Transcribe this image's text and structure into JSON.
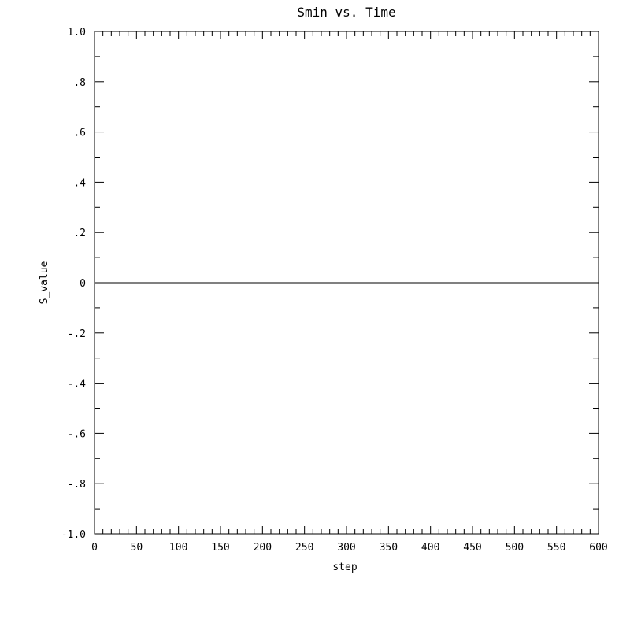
{
  "chart_data": {
    "type": "line",
    "title": "Smin vs. Time",
    "xlabel": "step",
    "ylabel": "S_value",
    "xlim": [
      0,
      600
    ],
    "ylim": [
      -1.0,
      1.0
    ],
    "x_ticks": [
      0,
      50,
      100,
      150,
      200,
      250,
      300,
      350,
      400,
      450,
      500,
      550,
      600
    ],
    "x_tick_labels": [
      "0",
      "50",
      "100",
      "150",
      "200",
      "250",
      "300",
      "350",
      "400",
      "450",
      "500",
      "550",
      "600"
    ],
    "y_ticks": [
      -1.0,
      -0.8,
      -0.6,
      -0.4,
      -0.2,
      0,
      0.2,
      0.4,
      0.6,
      0.8,
      1.0
    ],
    "y_tick_labels": [
      "-1.0",
      "-.8",
      "-.6",
      "-.4",
      "-.2",
      "0",
      ".2",
      ".4",
      ".6",
      ".8",
      "1.0"
    ],
    "x_minor_step": 10,
    "y_minor_step": 0.1,
    "grid": false,
    "series": [
      {
        "x": [
          0,
          600
        ],
        "y": [
          0,
          0
        ],
        "color": "#000000"
      }
    ]
  }
}
